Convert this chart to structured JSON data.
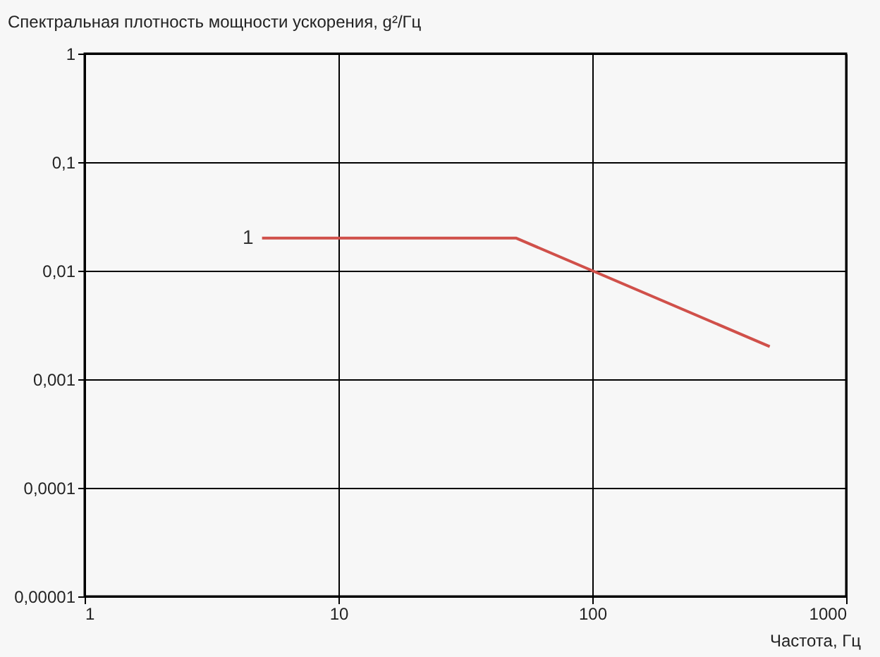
{
  "chart_data": {
    "type": "line",
    "ylabel": "Спектральная плотность мощности ускорения, g²/Гц",
    "xlabel": "Частота, Гц",
    "log": "xy",
    "grid": true,
    "xlim": [
      1,
      1000
    ],
    "xticks": [
      1,
      10,
      100,
      1000
    ],
    "ylim": [
      1e-05,
      1
    ],
    "yticks": [
      {
        "value": 1e-05,
        "label": "0,00001"
      },
      {
        "value": 0.0001,
        "label": "0,0001"
      },
      {
        "value": 0.001,
        "label": "0,001"
      },
      {
        "value": 0.01,
        "label": "0,01"
      },
      {
        "value": 0.1,
        "label": "0,1"
      },
      {
        "value": 1,
        "label": "1"
      }
    ],
    "series": [
      {
        "name": "1",
        "color": "#d0504a",
        "x": [
          5,
          50,
          500
        ],
        "values": [
          0.02,
          0.02,
          0.002
        ]
      }
    ]
  }
}
